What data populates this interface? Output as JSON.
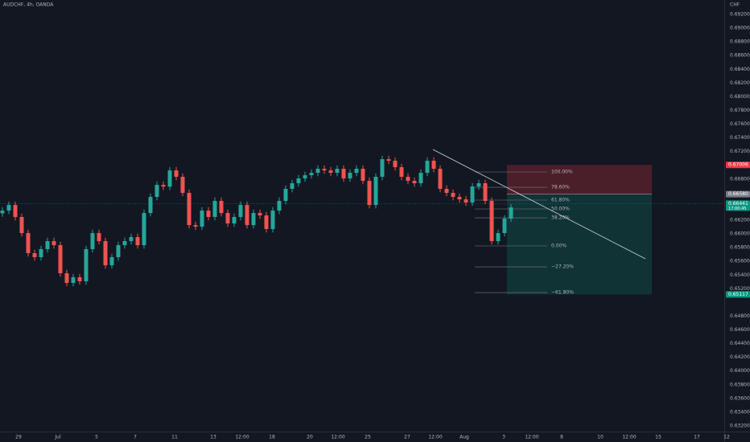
{
  "chart_data": {
    "type": "candlestick",
    "symbol": "AUDCHF, 4h, OANDA",
    "currency": "CHF",
    "up_color": "#26a69a",
    "down_color": "#ef5350",
    "grid": false,
    "ylim": [
      0.632,
      0.692
    ],
    "yticks": [
      {
        "value": 0.692,
        "label": "0.69200"
      },
      {
        "value": 0.69,
        "label": "0.69000"
      },
      {
        "value": 0.688,
        "label": "0.68800"
      },
      {
        "value": 0.686,
        "label": "0.68600"
      },
      {
        "value": 0.684,
        "label": "0.68400"
      },
      {
        "value": 0.682,
        "label": "0.68200"
      },
      {
        "value": 0.68,
        "label": "0.68000"
      },
      {
        "value": 0.678,
        "label": "0.67800"
      },
      {
        "value": 0.676,
        "label": "0.67600"
      },
      {
        "value": 0.674,
        "label": "0.67400"
      },
      {
        "value": 0.672,
        "label": "0.67200"
      },
      {
        "value": 0.668,
        "label": "0.66800"
      },
      {
        "value": 0.662,
        "label": "0.66200"
      },
      {
        "value": 0.66,
        "label": "0.66000"
      },
      {
        "value": 0.658,
        "label": "0.65800"
      },
      {
        "value": 0.656,
        "label": "0.65600"
      },
      {
        "value": 0.654,
        "label": "0.65400"
      },
      {
        "value": 0.652,
        "label": "0.65200"
      },
      {
        "value": 0.648,
        "label": "0.64800"
      },
      {
        "value": 0.646,
        "label": "0.64600"
      },
      {
        "value": 0.644,
        "label": "0.64400"
      },
      {
        "value": 0.642,
        "label": "0.64200"
      },
      {
        "value": 0.64,
        "label": "0.64000"
      },
      {
        "value": 0.638,
        "label": "0.63800"
      },
      {
        "value": 0.636,
        "label": "0.63600"
      },
      {
        "value": 0.634,
        "label": "0.63400"
      },
      {
        "value": 0.632,
        "label": "0.63200"
      }
    ],
    "categories": [
      "29",
      "Jul",
      "5",
      "7",
      "11",
      "13",
      "12:00",
      "18",
      "20",
      "12:00",
      "25",
      "27",
      "12:00",
      "Aug",
      "3",
      "12:00",
      "8",
      "10",
      "12:00",
      "15",
      "17",
      "12"
    ],
    "open": [
      0.663,
      0.6634,
      0.66422,
      0.66247,
      0.66012,
      0.65719,
      0.65661,
      0.65778,
      0.65895,
      0.65836,
      0.65426,
      0.65286,
      0.65368,
      0.65309,
      0.65778,
      0.66012,
      0.65895,
      0.65543,
      0.65661,
      0.65836,
      0.65895,
      0.65954,
      0.65836,
      0.66305,
      0.6654,
      0.66715,
      0.6669,
      0.66926,
      0.66833,
      0.66598,
      0.66129,
      0.66106,
      0.6634,
      0.66247,
      0.66481,
      0.66305,
      0.66153,
      0.66247,
      0.66422,
      0.66129,
      0.66305,
      0.6627,
      0.66071,
      0.6634,
      0.66481,
      0.66657,
      0.66739,
      0.66809,
      0.66856,
      0.66891,
      0.6695,
      0.66926,
      0.66891,
      0.6695,
      0.66809,
      0.66891,
      0.6695,
      0.66774,
      0.66422,
      0.66833,
      0.6709,
      0.67067,
      0.66973,
      0.66833,
      0.66774,
      0.66739,
      0.66891,
      0.67067,
      0.6695,
      0.66657,
      0.66598,
      0.6654,
      0.66504,
      0.66458,
      0.66692,
      0.66739,
      0.66481,
      0.65895,
      0.66012,
      0.66223
    ],
    "high": [
      0.6639,
      0.66472,
      0.66472,
      0.66297,
      0.66062,
      0.65769,
      0.65828,
      0.65945,
      0.65945,
      0.65886,
      0.65476,
      0.65418,
      0.65418,
      0.65828,
      0.66062,
      0.66062,
      0.65945,
      0.65711,
      0.65886,
      0.65945,
      0.66004,
      0.66004,
      0.66355,
      0.6659,
      0.66765,
      0.66765,
      0.66976,
      0.66976,
      0.66883,
      0.66648,
      0.66179,
      0.6639,
      0.6639,
      0.66531,
      0.66531,
      0.66355,
      0.66297,
      0.66472,
      0.66472,
      0.66355,
      0.66355,
      0.6632,
      0.6639,
      0.66531,
      0.66707,
      0.66789,
      0.66859,
      0.66906,
      0.66941,
      0.67,
      0.67,
      0.66976,
      0.67,
      0.67,
      0.66941,
      0.67,
      0.67,
      0.66824,
      0.66883,
      0.6714,
      0.6714,
      0.67117,
      0.67023,
      0.66883,
      0.66824,
      0.66941,
      0.67117,
      0.67117,
      0.67,
      0.66707,
      0.66648,
      0.6659,
      0.66554,
      0.66742,
      0.66789,
      0.66789,
      0.66531,
      0.66062,
      0.66273,
      0.66437
    ],
    "low": [
      0.6625,
      0.6629,
      0.66197,
      0.65962,
      0.65669,
      0.65611,
      0.65611,
      0.65728,
      0.65786,
      0.65376,
      0.65236,
      0.65236,
      0.65259,
      0.65259,
      0.65728,
      0.65845,
      0.65493,
      0.65493,
      0.65611,
      0.65786,
      0.65845,
      0.65786,
      0.65786,
      0.66255,
      0.6649,
      0.6664,
      0.6664,
      0.66783,
      0.66548,
      0.66079,
      0.66056,
      0.66056,
      0.66197,
      0.66197,
      0.66255,
      0.66103,
      0.66103,
      0.66197,
      0.66079,
      0.66079,
      0.6622,
      0.66021,
      0.66021,
      0.6629,
      0.66431,
      0.66607,
      0.66689,
      0.66759,
      0.66806,
      0.66841,
      0.66876,
      0.66841,
      0.66841,
      0.66759,
      0.66759,
      0.66841,
      0.66724,
      0.66372,
      0.66372,
      0.66783,
      0.67017,
      0.66923,
      0.66783,
      0.66724,
      0.66689,
      0.66689,
      0.66841,
      0.669,
      0.66607,
      0.66548,
      0.6649,
      0.66454,
      0.66408,
      0.66408,
      0.66642,
      0.66431,
      0.65845,
      0.65845,
      0.65962,
      0.66173
    ],
    "close": [
      0.6634,
      0.66422,
      0.66247,
      0.66012,
      0.65719,
      0.65661,
      0.65778,
      0.65895,
      0.65836,
      0.65426,
      0.65286,
      0.65368,
      0.65309,
      0.65778,
      0.66012,
      0.65895,
      0.65543,
      0.65661,
      0.65836,
      0.65895,
      0.65954,
      0.65836,
      0.66305,
      0.6654,
      0.66715,
      0.6669,
      0.66926,
      0.66833,
      0.66598,
      0.66129,
      0.66106,
      0.6634,
      0.66247,
      0.66481,
      0.66305,
      0.66153,
      0.66247,
      0.66422,
      0.66129,
      0.66305,
      0.6627,
      0.66071,
      0.6634,
      0.66481,
      0.66657,
      0.66739,
      0.66809,
      0.66856,
      0.66891,
      0.6695,
      0.66926,
      0.66891,
      0.6695,
      0.66809,
      0.66891,
      0.6695,
      0.66774,
      0.66422,
      0.66833,
      0.6709,
      0.67067,
      0.66973,
      0.66833,
      0.66774,
      0.66739,
      0.66891,
      0.67067,
      0.6695,
      0.66657,
      0.66598,
      0.6654,
      0.66504,
      0.66458,
      0.66692,
      0.66739,
      0.66481,
      0.65895,
      0.66012,
      0.66223,
      0.66387
    ],
    "price_tags": [
      {
        "value": 0.67006,
        "label": "0.67006",
        "color": "#f23645"
      },
      {
        "value": 0.6658,
        "label": "0.66580",
        "color": "#787b86"
      },
      {
        "value": 0.66441,
        "label": "0.66441",
        "color": "#089981"
      },
      {
        "value": 0.65117,
        "label": "0.65117",
        "color": "#089981"
      }
    ],
    "countdown": "17:00:45",
    "trendline": [
      0.67231,
      0.65637
    ],
    "fib_levels": [
      {
        "label": "100.00%",
        "price": 0.66903
      },
      {
        "label": "78.60%",
        "price": 0.6668
      },
      {
        "label": "61.80%",
        "price": 0.66493
      },
      {
        "label": "50.00%",
        "price": 0.66364
      },
      {
        "label": "38.20%",
        "price": 0.66235
      },
      {
        "label": "0.00%",
        "price": 0.65825
      },
      {
        "label": "−27.20%",
        "price": 0.6552
      },
      {
        "label": "−61.80%",
        "price": 0.65145
      }
    ]
  }
}
